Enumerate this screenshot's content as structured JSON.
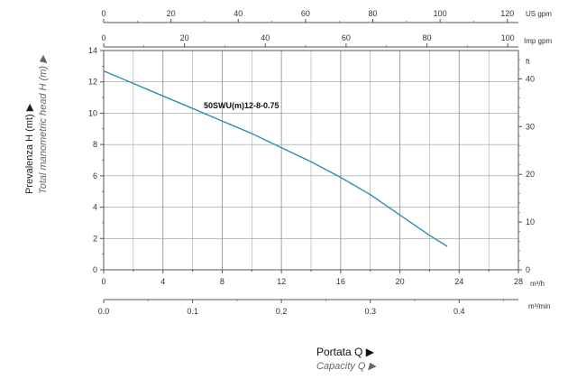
{
  "chart_data": {
    "type": "line",
    "series": [
      {
        "name": "50SWU(m)12-8-0.75",
        "x": [
          0,
          2,
          4,
          6,
          8,
          10,
          12,
          14,
          16,
          18,
          20,
          22,
          23.2
        ],
        "y": [
          12.7,
          11.9,
          11.1,
          10.3,
          9.5,
          8.7,
          7.8,
          6.9,
          5.9,
          4.8,
          3.5,
          2.2,
          1.5
        ]
      }
    ],
    "x_axis": {
      "unit": "m³/h",
      "range": [
        0,
        28
      ],
      "ticks": [
        "0",
        "4",
        "8",
        "12",
        "16",
        "20",
        "24",
        "28"
      ],
      "label": "Portata Q ▶",
      "label_sub": "Capacity Q ▶"
    },
    "y_axis": {
      "range": [
        0,
        14
      ],
      "ticks": [
        "0",
        "2",
        "4",
        "6",
        "8",
        "10",
        "12",
        "14"
      ],
      "label": "Prevalenza H (mt) ▶",
      "label_sub": "Total manometric head  H (m) ▶"
    },
    "y_axis_right": {
      "unit": "ft",
      "ticks": [
        "0",
        "10",
        "20",
        "30",
        "40"
      ]
    },
    "top_axis_us": {
      "unit": "US gpm",
      "ticks": [
        "0",
        "20",
        "40",
        "60",
        "80",
        "100",
        "120"
      ]
    },
    "top_axis_imp": {
      "unit": "Imp gpm",
      "ticks": [
        "0",
        "20",
        "40",
        "60",
        "80",
        "100"
      ]
    },
    "bottom_axis_m3min": {
      "unit": "m³/min",
      "ticks": [
        "0.0",
        "0.1",
        "0.2",
        "0.3",
        "0.4"
      ]
    },
    "grid": true,
    "colors": {
      "curve": "#2a8fb5",
      "grid": "#9a9a9a",
      "axis": "#555555"
    }
  }
}
